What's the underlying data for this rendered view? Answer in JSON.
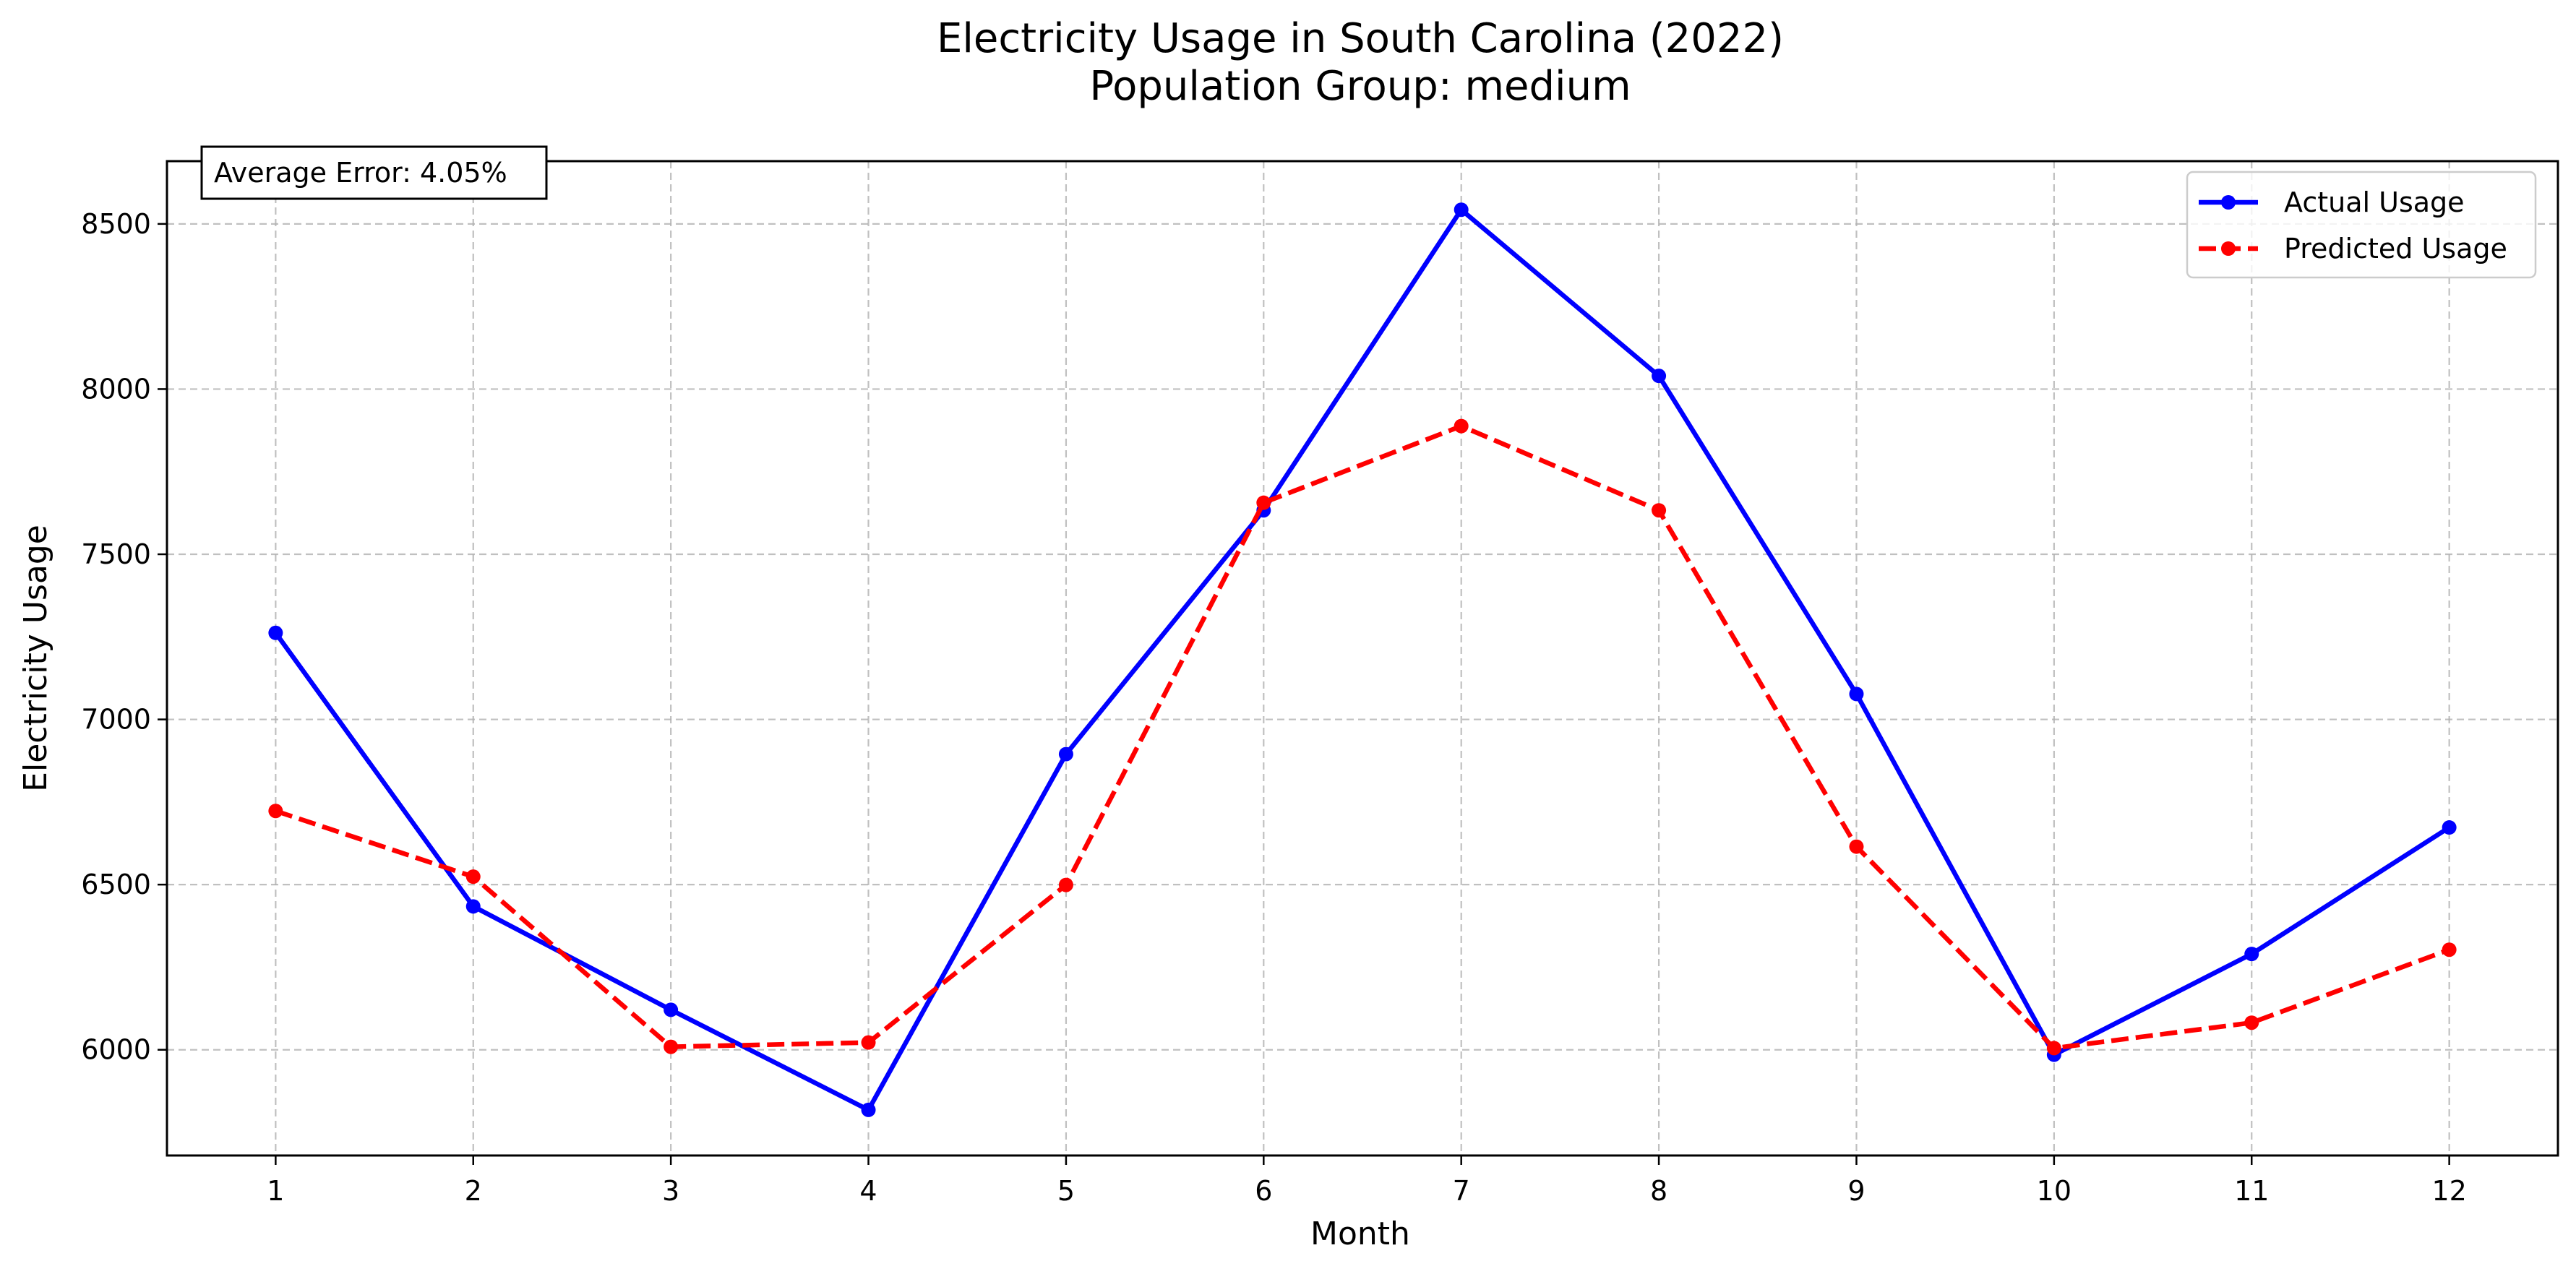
{
  "chart_data": {
    "type": "line",
    "title_line1": "Electricity Usage in South Carolina (2022)",
    "title_line2": "Population Group: medium",
    "xlabel": "Month",
    "ylabel": "Electricity Usage",
    "x": [
      1,
      2,
      3,
      4,
      5,
      6,
      7,
      8,
      9,
      10,
      11,
      12
    ],
    "xlim": [
      0.45,
      12.55
    ],
    "ylim": [
      5680,
      8690
    ],
    "yticks": [
      6000,
      6500,
      7000,
      7500,
      8000,
      8500
    ],
    "grid": true,
    "legend_position": "top-right",
    "annotation": "Average Error: 4.05%",
    "series": [
      {
        "name": "Actual Usage",
        "color": "#0000ff",
        "dash": "solid",
        "values": [
          7262,
          6434,
          6121,
          5818,
          6895,
          7633,
          8543,
          8040,
          7077,
          5985,
          6290,
          6673
        ]
      },
      {
        "name": "Predicted Usage",
        "color": "#ff0000",
        "dash": "dashed",
        "values": [
          6723,
          6524,
          6009,
          6022,
          6499,
          7656,
          7888,
          7633,
          6615,
          6005,
          6082,
          6303
        ]
      }
    ]
  }
}
